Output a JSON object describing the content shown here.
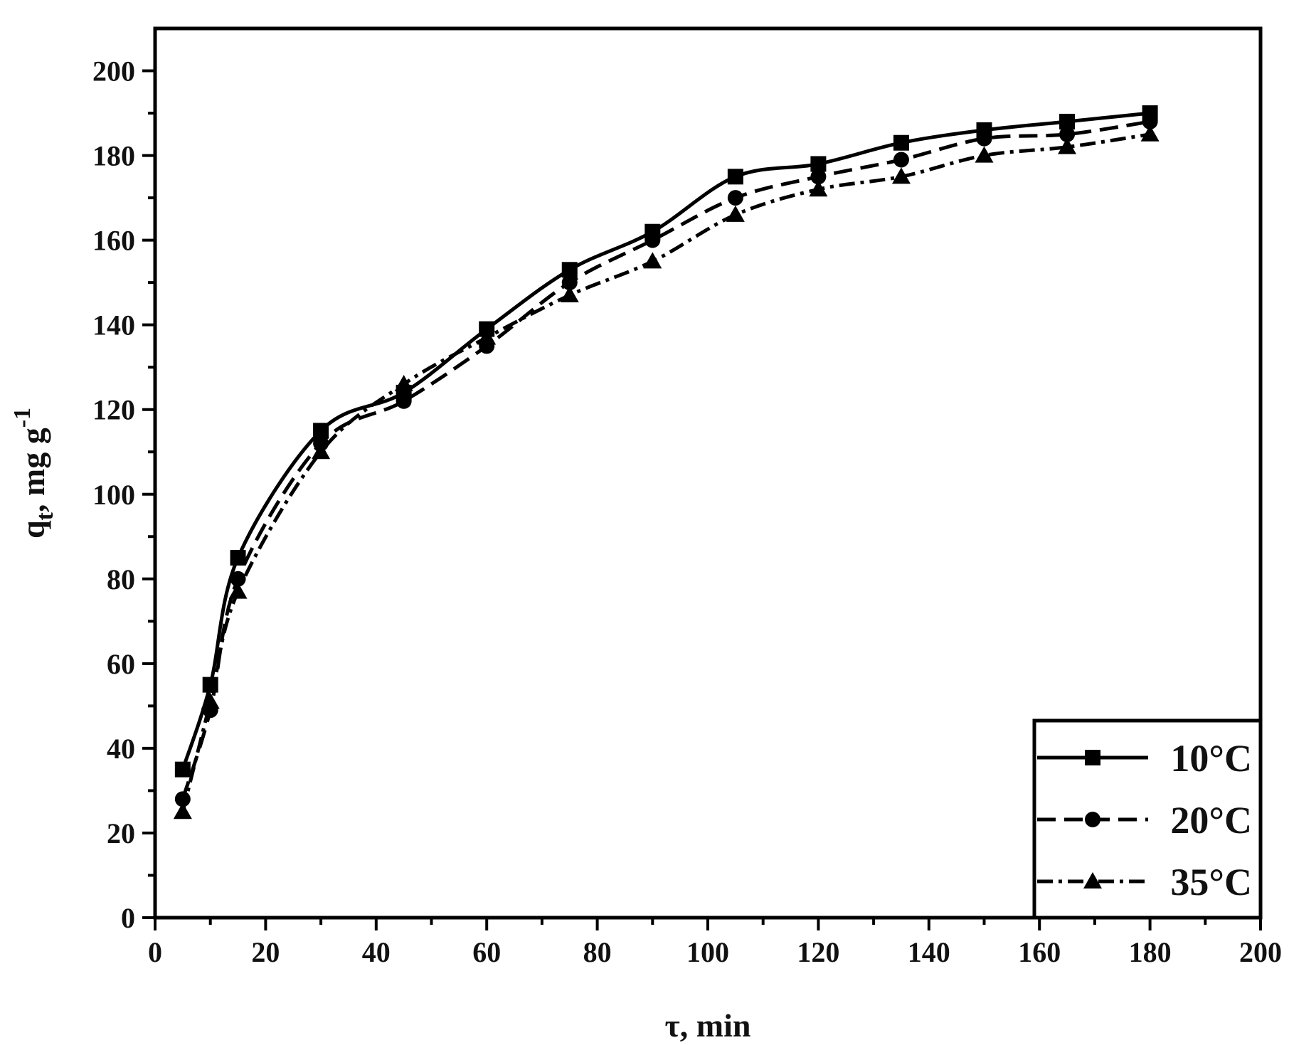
{
  "chart_data": {
    "type": "line",
    "title": "",
    "xlabel": "τ, min",
    "ylabel_main": "q",
    "ylabel_sub": "t",
    "ylabel_rest": ", mg g",
    "ylabel_sup": "-1",
    "xlim": [
      0,
      200
    ],
    "ylim": [
      0,
      210
    ],
    "xticks": [
      0,
      20,
      40,
      60,
      80,
      100,
      120,
      140,
      160,
      180,
      200
    ],
    "yticks": [
      0,
      20,
      40,
      60,
      80,
      100,
      120,
      140,
      160,
      180,
      200
    ],
    "grid": false,
    "legend_position": "bottom-right",
    "x": [
      5,
      10,
      15,
      30,
      45,
      60,
      75,
      90,
      105,
      120,
      135,
      150,
      165,
      180
    ],
    "series": [
      {
        "name": "10°C",
        "marker": "square",
        "dash": "solid",
        "values": [
          35,
          55,
          85,
          115,
          124,
          139,
          153,
          162,
          175,
          178,
          183,
          186,
          188,
          190
        ]
      },
      {
        "name": "20°C",
        "marker": "circle",
        "dash": "dashed",
        "values": [
          28,
          49,
          80,
          112,
          122,
          135,
          150,
          160,
          170,
          175,
          179,
          184,
          185,
          188
        ]
      },
      {
        "name": "35°C",
        "marker": "triangle",
        "dash": "dashdot",
        "values": [
          25,
          51,
          77,
          110,
          126,
          137,
          147,
          155,
          166,
          172,
          175,
          180,
          182,
          185
        ]
      }
    ]
  }
}
